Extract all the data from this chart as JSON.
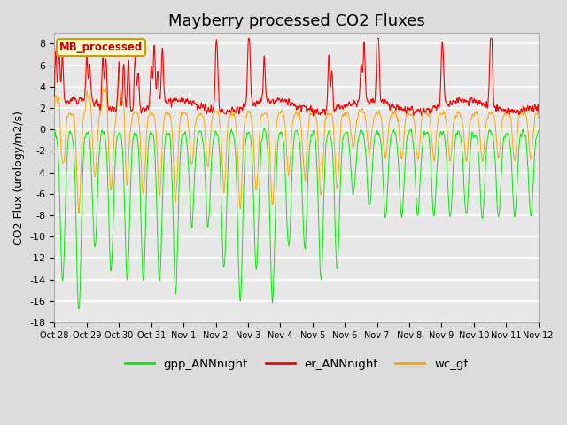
{
  "title": "Mayberry processed CO2 Fluxes",
  "ylabel": "CO2 Flux (urology/m2/s)",
  "ylim": [
    -18,
    9
  ],
  "yticks": [
    -18,
    -16,
    -14,
    -12,
    -10,
    -8,
    -6,
    -4,
    -2,
    0,
    2,
    4,
    6,
    8
  ],
  "xtick_labels": [
    "Oct 28",
    "Oct 29",
    "Oct 30",
    "Oct 31",
    "Nov 1",
    "Nov 2",
    "Nov 3",
    "Nov 4",
    "Nov 5",
    "Nov 6",
    "Nov 7",
    "Nov 8",
    "Nov 9",
    "Nov 10",
    "Nov 11",
    "Nov 12"
  ],
  "legend_entries": [
    "gpp_ANNnight",
    "er_ANNnight",
    "wc_gf"
  ],
  "legend_colors": [
    "#00EE00",
    "#FF0000",
    "#FFA500"
  ],
  "inset_label": "MB_processed",
  "bg_color": "#DCDCDC",
  "plot_bg": "#E8E8E8",
  "grid_color": "#FFFFFF",
  "title_fontsize": 13,
  "axis_fontsize": 9,
  "tick_fontsize": 8,
  "n_days": 15,
  "pts_per_day": 96
}
